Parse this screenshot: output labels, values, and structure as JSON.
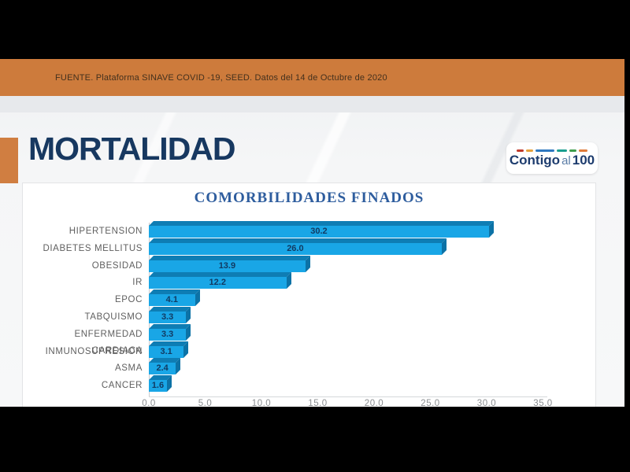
{
  "source_bar": {
    "text": "FUENTE. Plataforma SINAVE COVID -19, SEED. Datos del 14 de Octubre de 2020"
  },
  "header": {
    "title": "MORTALIDAD"
  },
  "logo": {
    "part1": "Contigo",
    "part2": "al",
    "part3": "100",
    "dash_colors": [
      "#c0392b",
      "#e6a23c",
      "#2e78c0",
      "#1a9e8f",
      "#3f9e4d",
      "#e07b39"
    ],
    "dash_widths": [
      9,
      9,
      24,
      13,
      9,
      11
    ]
  },
  "chart_data": {
    "type": "bar",
    "orientation": "horizontal",
    "title": "COMORBILIDADES FINADOS",
    "categories": [
      "HIPERTENSION",
      "DIABETES MELLITUS",
      "OBESIDAD",
      "IR",
      "EPOC",
      "TABQUISMO",
      "ENFERMEDAD CARDIACA",
      "INMUNOSUPRESION",
      "ASMA",
      "CANCER"
    ],
    "values": [
      30.2,
      26.0,
      13.9,
      12.2,
      4.1,
      3.3,
      3.3,
      3.1,
      2.4,
      1.6
    ],
    "value_labels": [
      "30.2",
      "26.0",
      "13.9",
      "12.2",
      "4.1",
      "3.3",
      "3.3",
      "3.1",
      "2.4",
      "1.6"
    ],
    "xlabel": "",
    "ylabel": "",
    "xlim": [
      0,
      35
    ],
    "x_tick_labels": [
      "0.0",
      "5.0",
      "10.0",
      "15.0",
      "20.0",
      "25.0",
      "30.0",
      "35.0"
    ],
    "grid": false,
    "legend": false,
    "bar_color": "#19a6e6",
    "bar_side_color": "#0e7db4",
    "value_label_color": "#123a62"
  },
  "colors": {
    "band_orange": "#cd7b3c",
    "tab_orange": "#d07e41",
    "title_navy": "#173860",
    "chart_title_blue": "#2e5d9e",
    "frame_black": "#000000"
  }
}
